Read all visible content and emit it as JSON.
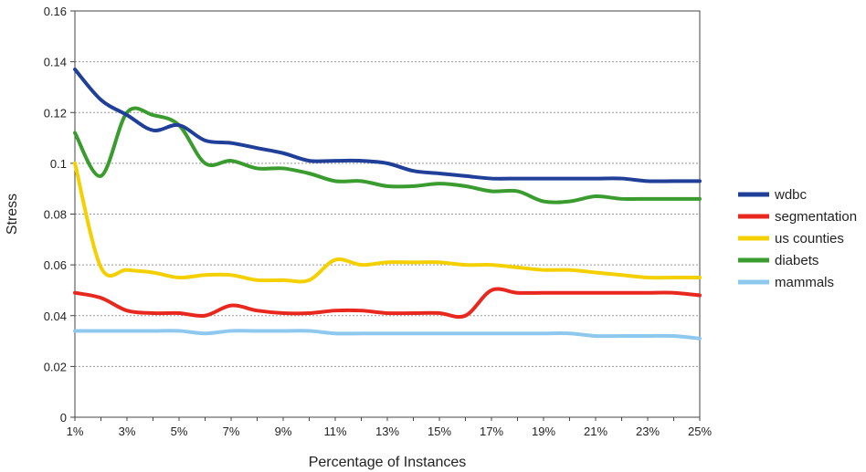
{
  "chart_data": {
    "type": "line",
    "title": "",
    "xlabel": "Percentage of Instances",
    "ylabel": "Stress",
    "x": [
      1,
      2,
      3,
      4,
      5,
      6,
      7,
      8,
      9,
      10,
      11,
      12,
      13,
      14,
      15,
      16,
      17,
      18,
      19,
      20,
      21,
      22,
      23,
      24,
      25
    ],
    "x_tick_labels": [
      "1%",
      "3%",
      "5%",
      "7%",
      "9%",
      "11%",
      "13%",
      "15%",
      "17%",
      "19%",
      "21%",
      "23%",
      "25%"
    ],
    "x_tick_values": [
      1,
      3,
      5,
      7,
      9,
      11,
      13,
      15,
      17,
      19,
      21,
      23,
      25
    ],
    "y_tick_labels": [
      "0",
      "0.02",
      "0.04",
      "0.06",
      "0.08",
      "0.1",
      "0.12",
      "0.14",
      "0.16"
    ],
    "y_tick_values": [
      0,
      0.02,
      0.04,
      0.06,
      0.08,
      0.1,
      0.12,
      0.14,
      0.16
    ],
    "xlim": [
      1,
      25
    ],
    "ylim": [
      0,
      0.16
    ],
    "grid": "horizontal-dotted",
    "legend_position": "right",
    "series": [
      {
        "name": "wdbc",
        "color": "#1f3f99",
        "values": [
          0.137,
          0.125,
          0.119,
          0.113,
          0.115,
          0.109,
          0.108,
          0.106,
          0.104,
          0.101,
          0.101,
          0.101,
          0.1,
          0.097,
          0.096,
          0.095,
          0.094,
          0.094,
          0.094,
          0.094,
          0.094,
          0.094,
          0.093,
          0.093,
          0.093
        ]
      },
      {
        "name": "segmentation",
        "color": "#e8281e",
        "values": [
          0.049,
          0.047,
          0.042,
          0.041,
          0.041,
          0.04,
          0.044,
          0.042,
          0.041,
          0.041,
          0.042,
          0.042,
          0.041,
          0.041,
          0.041,
          0.04,
          0.05,
          0.049,
          0.049,
          0.049,
          0.049,
          0.049,
          0.049,
          0.049,
          0.048
        ]
      },
      {
        "name": "us counties",
        "color": "#f5d000",
        "values": [
          0.1,
          0.059,
          0.058,
          0.057,
          0.055,
          0.056,
          0.056,
          0.054,
          0.054,
          0.054,
          0.062,
          0.06,
          0.061,
          0.061,
          0.061,
          0.06,
          0.06,
          0.059,
          0.058,
          0.058,
          0.057,
          0.056,
          0.055,
          0.055,
          0.055
        ]
      },
      {
        "name": "diabets",
        "color": "#3a9c2e",
        "values": [
          0.112,
          0.095,
          0.12,
          0.119,
          0.115,
          0.1,
          0.101,
          0.098,
          0.098,
          0.096,
          0.093,
          0.093,
          0.091,
          0.091,
          0.092,
          0.091,
          0.089,
          0.089,
          0.085,
          0.085,
          0.087,
          0.086,
          0.086,
          0.086,
          0.086
        ]
      },
      {
        "name": "mammals",
        "color": "#8ec8ee",
        "values": [
          0.034,
          0.034,
          0.034,
          0.034,
          0.034,
          0.033,
          0.034,
          0.034,
          0.034,
          0.034,
          0.033,
          0.033,
          0.033,
          0.033,
          0.033,
          0.033,
          0.033,
          0.033,
          0.033,
          0.033,
          0.032,
          0.032,
          0.032,
          0.032,
          0.031
        ]
      }
    ]
  }
}
